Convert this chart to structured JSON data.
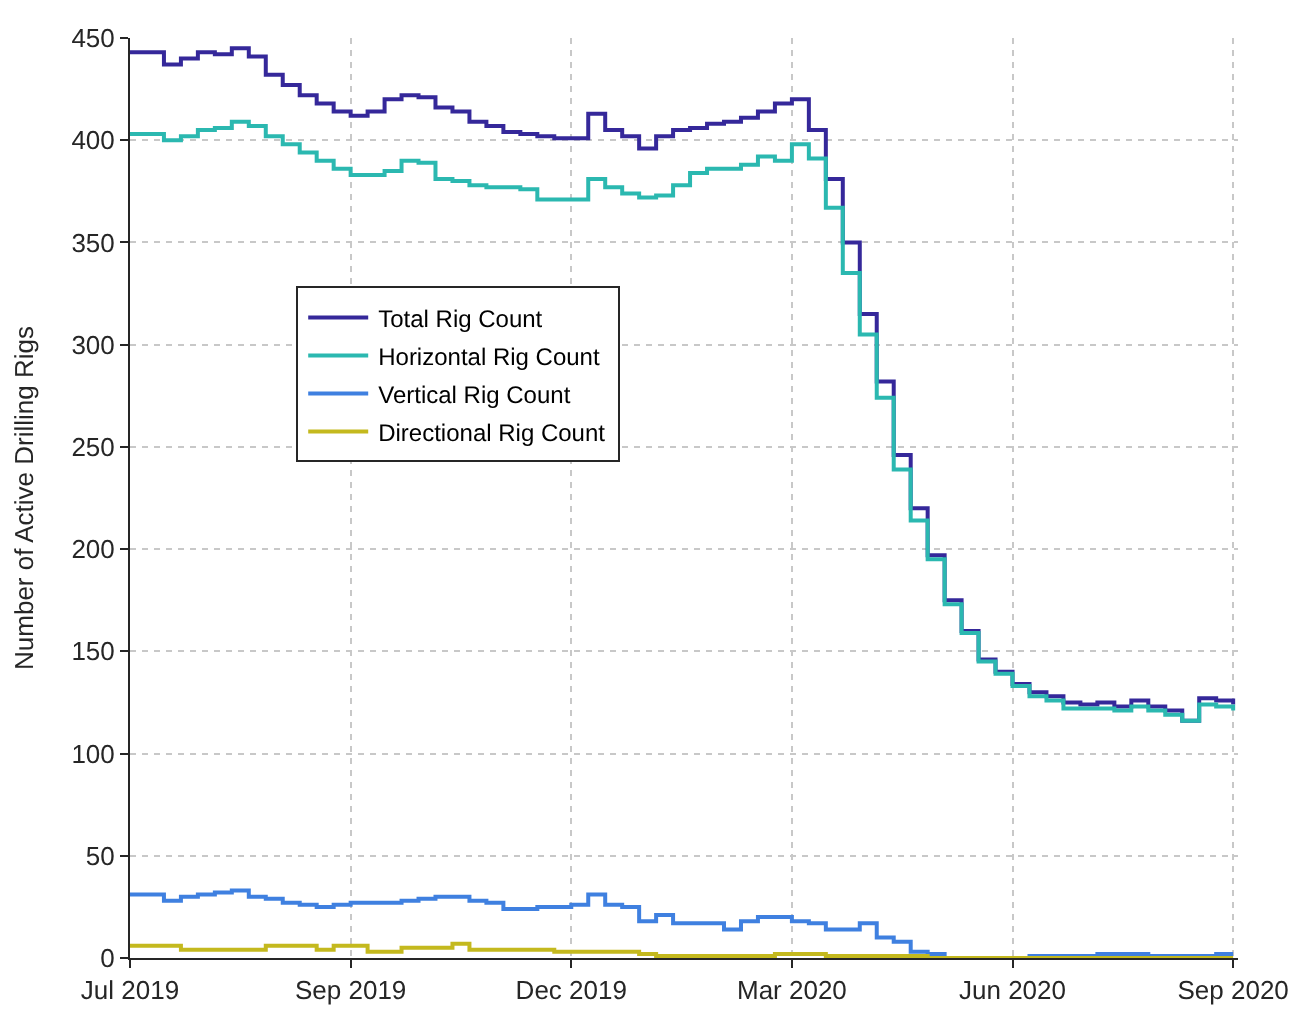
{
  "chart_data": {
    "type": "step",
    "ylabel": "Number of Active Drilling Rigs",
    "x": [
      "2019-07-01",
      "2019-07-08",
      "2019-07-15",
      "2019-07-22",
      "2019-07-29",
      "2019-08-05",
      "2019-08-12",
      "2019-08-19",
      "2019-08-26",
      "2019-09-02",
      "2019-09-09",
      "2019-09-16",
      "2019-09-23",
      "2019-09-30",
      "2019-10-07",
      "2019-10-14",
      "2019-10-21",
      "2019-10-28",
      "2019-11-04",
      "2019-11-11",
      "2019-11-18",
      "2019-11-25",
      "2019-12-02",
      "2019-12-09",
      "2019-12-16",
      "2019-12-23",
      "2019-12-30",
      "2020-01-06",
      "2020-01-13",
      "2020-01-20",
      "2020-01-27",
      "2020-02-03",
      "2020-02-10",
      "2020-02-17",
      "2020-02-24",
      "2020-03-02",
      "2020-03-09",
      "2020-03-16",
      "2020-03-23",
      "2020-03-30",
      "2020-04-06",
      "2020-04-13",
      "2020-04-20",
      "2020-04-27",
      "2020-05-04",
      "2020-05-11",
      "2020-05-18",
      "2020-05-25",
      "2020-06-01",
      "2020-06-08",
      "2020-06-15",
      "2020-06-22",
      "2020-06-29",
      "2020-07-06",
      "2020-07-13",
      "2020-07-20",
      "2020-07-27",
      "2020-08-03",
      "2020-08-10",
      "2020-08-17",
      "2020-08-24",
      "2020-08-31",
      "2020-09-07",
      "2020-09-14",
      "2020-09-21",
      "2020-09-28"
    ],
    "series": [
      {
        "name": "Total Rig Count",
        "color": "#35289a",
        "values": [
          443,
          443,
          437,
          440,
          443,
          442,
          445,
          441,
          432,
          427,
          422,
          418,
          414,
          412,
          414,
          420,
          422,
          421,
          416,
          414,
          409,
          407,
          404,
          403,
          402,
          401,
          401,
          413,
          405,
          402,
          396,
          402,
          405,
          406,
          408,
          409,
          411,
          414,
          418,
          420,
          405,
          381,
          350,
          315,
          282,
          246,
          220,
          197,
          175,
          160,
          146,
          140,
          134,
          130,
          128,
          125,
          124,
          125,
          123,
          126,
          123,
          121,
          116,
          127,
          126,
          124
        ]
      },
      {
        "name": "Horizontal Rig Count",
        "color": "#2bb8b0",
        "values": [
          403,
          403,
          400,
          402,
          405,
          406,
          409,
          407,
          402,
          398,
          394,
          390,
          386,
          383,
          383,
          385,
          390,
          389,
          381,
          380,
          378,
          377,
          377,
          376,
          371,
          371,
          371,
          381,
          377,
          374,
          372,
          373,
          378,
          384,
          386,
          386,
          388,
          392,
          390,
          398,
          391,
          367,
          335,
          305,
          274,
          239,
          214,
          195,
          173,
          159,
          145,
          139,
          133,
          128,
          126,
          122,
          122,
          122,
          121,
          123,
          121,
          119,
          116,
          124,
          123,
          121
        ]
      },
      {
        "name": "Vertical Rig Count",
        "color": "#3f80e0",
        "values": [
          31,
          31,
          28,
          30,
          31,
          32,
          33,
          30,
          29,
          27,
          26,
          25,
          26,
          27,
          27,
          27,
          28,
          29,
          30,
          30,
          28,
          27,
          24,
          24,
          25,
          25,
          26,
          31,
          26,
          25,
          18,
          21,
          17,
          17,
          17,
          14,
          18,
          20,
          20,
          18,
          17,
          14,
          14,
          17,
          10,
          8,
          3,
          2,
          0,
          0,
          0,
          0,
          0,
          1,
          1,
          1,
          1,
          2,
          2,
          2,
          1,
          1,
          1,
          1,
          2,
          2
        ]
      },
      {
        "name": "Directional Rig Count",
        "color": "#c4b91e",
        "values": [
          6,
          6,
          6,
          4,
          4,
          4,
          4,
          4,
          6,
          6,
          6,
          4,
          6,
          6,
          3,
          3,
          5,
          5,
          5,
          7,
          4,
          4,
          4,
          4,
          4,
          3,
          3,
          3,
          3,
          3,
          2,
          1,
          1,
          1,
          1,
          1,
          1,
          1,
          2,
          2,
          2,
          1,
          1,
          1,
          1,
          1,
          1,
          0,
          0,
          0,
          0,
          0,
          0,
          0,
          0,
          0,
          0,
          0,
          0,
          0,
          0,
          0,
          0,
          0,
          0,
          0
        ]
      }
    ],
    "xlim": [
      "2019-07-01",
      "2020-09-30"
    ],
    "xticks": [
      {
        "value": "2019-07-01",
        "label": "Jul 2019"
      },
      {
        "value": "2019-09-30",
        "label": "Sep 2019"
      },
      {
        "value": "2019-12-30",
        "label": "Dec 2019"
      },
      {
        "value": "2020-03-30",
        "label": "Mar 2020"
      },
      {
        "value": "2020-06-29",
        "label": "Jun 2020"
      },
      {
        "value": "2020-09-28",
        "label": "Sep 2020"
      }
    ],
    "ylim": [
      0,
      450
    ],
    "yticks": [
      0,
      50,
      100,
      150,
      200,
      250,
      300,
      350,
      400,
      450
    ],
    "grid": true,
    "legend": "top left",
    "marker": "none",
    "line_style": "solid"
  }
}
